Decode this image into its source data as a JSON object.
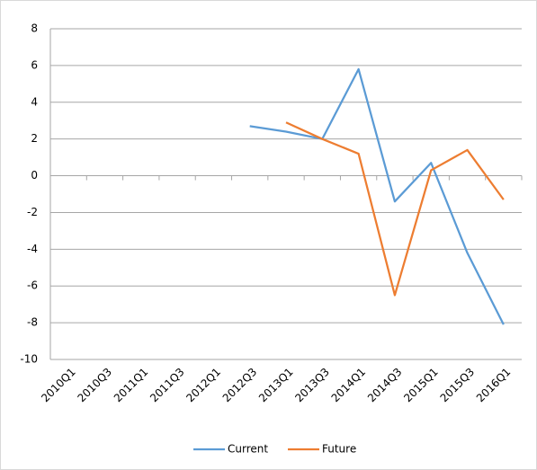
{
  "chart_data": {
    "type": "line",
    "categories": [
      "2010Q1",
      "2010Q3",
      "2011Q1",
      "2011Q3",
      "2012Q1",
      "2012Q3",
      "2013Q1",
      "2013Q3",
      "2014Q1",
      "2014Q3",
      "2015Q1",
      "2015Q3",
      "2016Q1"
    ],
    "series": [
      {
        "name": "Current",
        "color": "#5b9bd5",
        "values": [
          null,
          null,
          null,
          null,
          null,
          2.7,
          2.4,
          2.0,
          5.8,
          -1.4,
          0.7,
          -4.2,
          -8.1
        ]
      },
      {
        "name": "Future",
        "color": "#ed7d31",
        "values": [
          null,
          null,
          null,
          null,
          null,
          null,
          2.9,
          2.0,
          1.2,
          -6.5,
          0.3,
          1.4,
          -1.3
        ]
      }
    ],
    "ylim": [
      -10,
      8
    ],
    "yticks": [
      -10,
      -8,
      -6,
      -4,
      -2,
      0,
      2,
      4,
      6,
      8
    ],
    "grid": true,
    "legend": "bottom"
  }
}
